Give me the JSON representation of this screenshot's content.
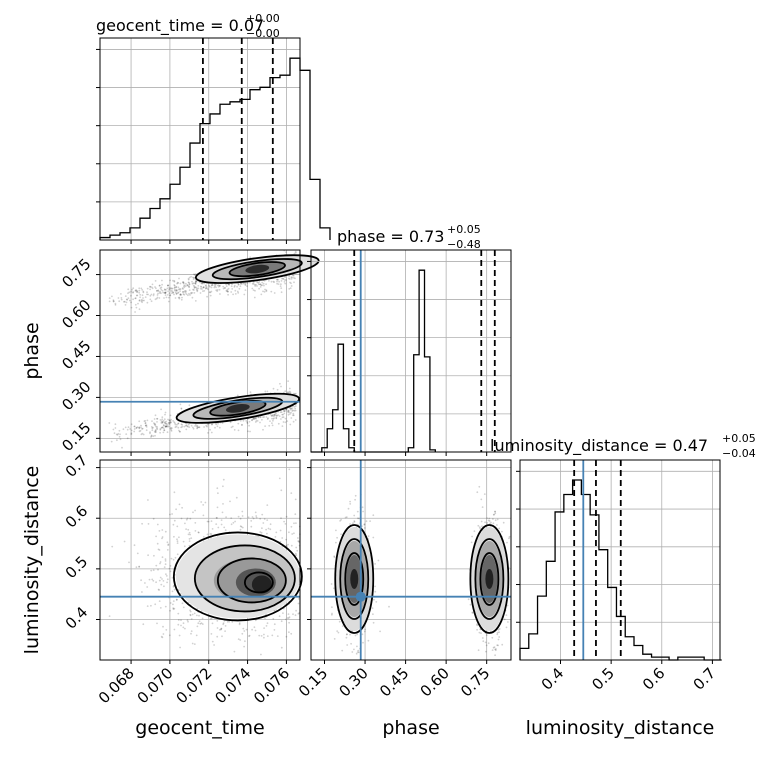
{
  "chart_data": {
    "type": "corner",
    "parameters": [
      "geocent_time",
      "phase",
      "luminosity_distance"
    ],
    "truth_color": "#4682b4",
    "truths": {
      "geocent_time": null,
      "phase": 0.284,
      "luminosity_distance": 0.445
    },
    "axes": {
      "geocent_time": {
        "lim": [
          0.0664,
          0.0767
        ],
        "ticks": [
          "0.068",
          "0.070",
          "0.072",
          "0.074",
          "0.076"
        ]
      },
      "phase": {
        "lim": [
          0.1,
          0.84
        ],
        "ticks": [
          "0.15",
          "0.30",
          "0.45",
          "0.60",
          "0.75"
        ]
      },
      "luminosity_distance": {
        "lim": [
          0.32,
          0.715
        ],
        "ticks": [
          "0.4",
          "0.5",
          "0.6",
          "0.7"
        ]
      }
    },
    "titles": {
      "geocent_time": {
        "text": "geocent_time = 0.07",
        "upper": "+0.00",
        "lower": "−0.00"
      },
      "phase": {
        "text": "phase = 0.73",
        "upper": "+0.05",
        "lower": "−0.48"
      },
      "luminosity_distance": {
        "text": "luminosity_distance = 0.47",
        "upper": "+0.05",
        "lower": "−0.04"
      }
    },
    "xlabels": [
      "geocent_time",
      "phase",
      "luminosity_distance"
    ],
    "ylabels": [
      "",
      "phase",
      "luminosity_distance"
    ],
    "histograms": {
      "geocent_time": {
        "edges_start": 0.0664,
        "bin_width": 0.000515,
        "quantiles": [
          0.0717,
          0.0737,
          0.0753
        ],
        "counts": [
          1,
          2,
          3,
          5,
          9,
          13,
          17,
          23,
          30,
          40,
          48,
          52,
          56,
          57,
          58,
          62,
          63,
          67,
          68,
          75,
          70,
          25,
          5
        ]
      },
      "phase": {
        "edges_start": 0.1,
        "bin_width": 0.02,
        "quantiles": [
          0.26,
          0.73,
          0.78
        ],
        "counts": [
          0,
          0,
          2,
          11,
          20,
          51,
          11,
          2,
          0,
          0,
          0,
          0,
          0,
          0,
          0,
          0,
          0,
          0,
          2,
          46,
          86,
          45,
          1
        ]
      },
      "luminosity_distance": {
        "edges_start": 0.32,
        "bin_width": 0.01732,
        "quantiles": [
          0.427,
          0.47,
          0.519
        ],
        "counts": [
          4,
          9,
          22,
          34,
          51,
          57,
          62,
          57,
          50,
          38,
          25,
          15,
          8,
          5,
          2,
          1,
          1,
          0,
          1,
          1,
          1,
          0,
          0
        ]
      }
    },
    "scatter": {
      "phase_vs_geocent_time": {
        "clusters": [
          {
            "x_range": [
              0.0667,
              0.0765
            ],
            "y_center": 0.22,
            "y_slope_per_x": 12,
            "y_spread": 0.03,
            "n": 900
          },
          {
            "x_range": [
              0.0667,
              0.0765
            ],
            "y_center": 0.71,
            "y_slope_per_x": 12,
            "y_spread": 0.03,
            "n": 900
          }
        ],
        "contour_centers": [
          {
            "x": 0.0735,
            "y": 0.26
          },
          {
            "x": 0.0745,
            "y": 0.77
          }
        ]
      },
      "luminosity_distance_vs_geocent_time": {
        "center": {
          "x": 0.0735,
          "y": 0.485
        },
        "sx": 0.0022,
        "sy": 0.055,
        "n": 1300
      },
      "luminosity_distance_vs_phase": {
        "clusters": [
          {
            "x": 0.26,
            "y": 0.48,
            "sx": 0.03,
            "sy": 0.06,
            "n": 600
          },
          {
            "x": 0.76,
            "y": 0.48,
            "sx": 0.03,
            "sy": 0.06,
            "n": 600
          }
        ]
      }
    }
  }
}
